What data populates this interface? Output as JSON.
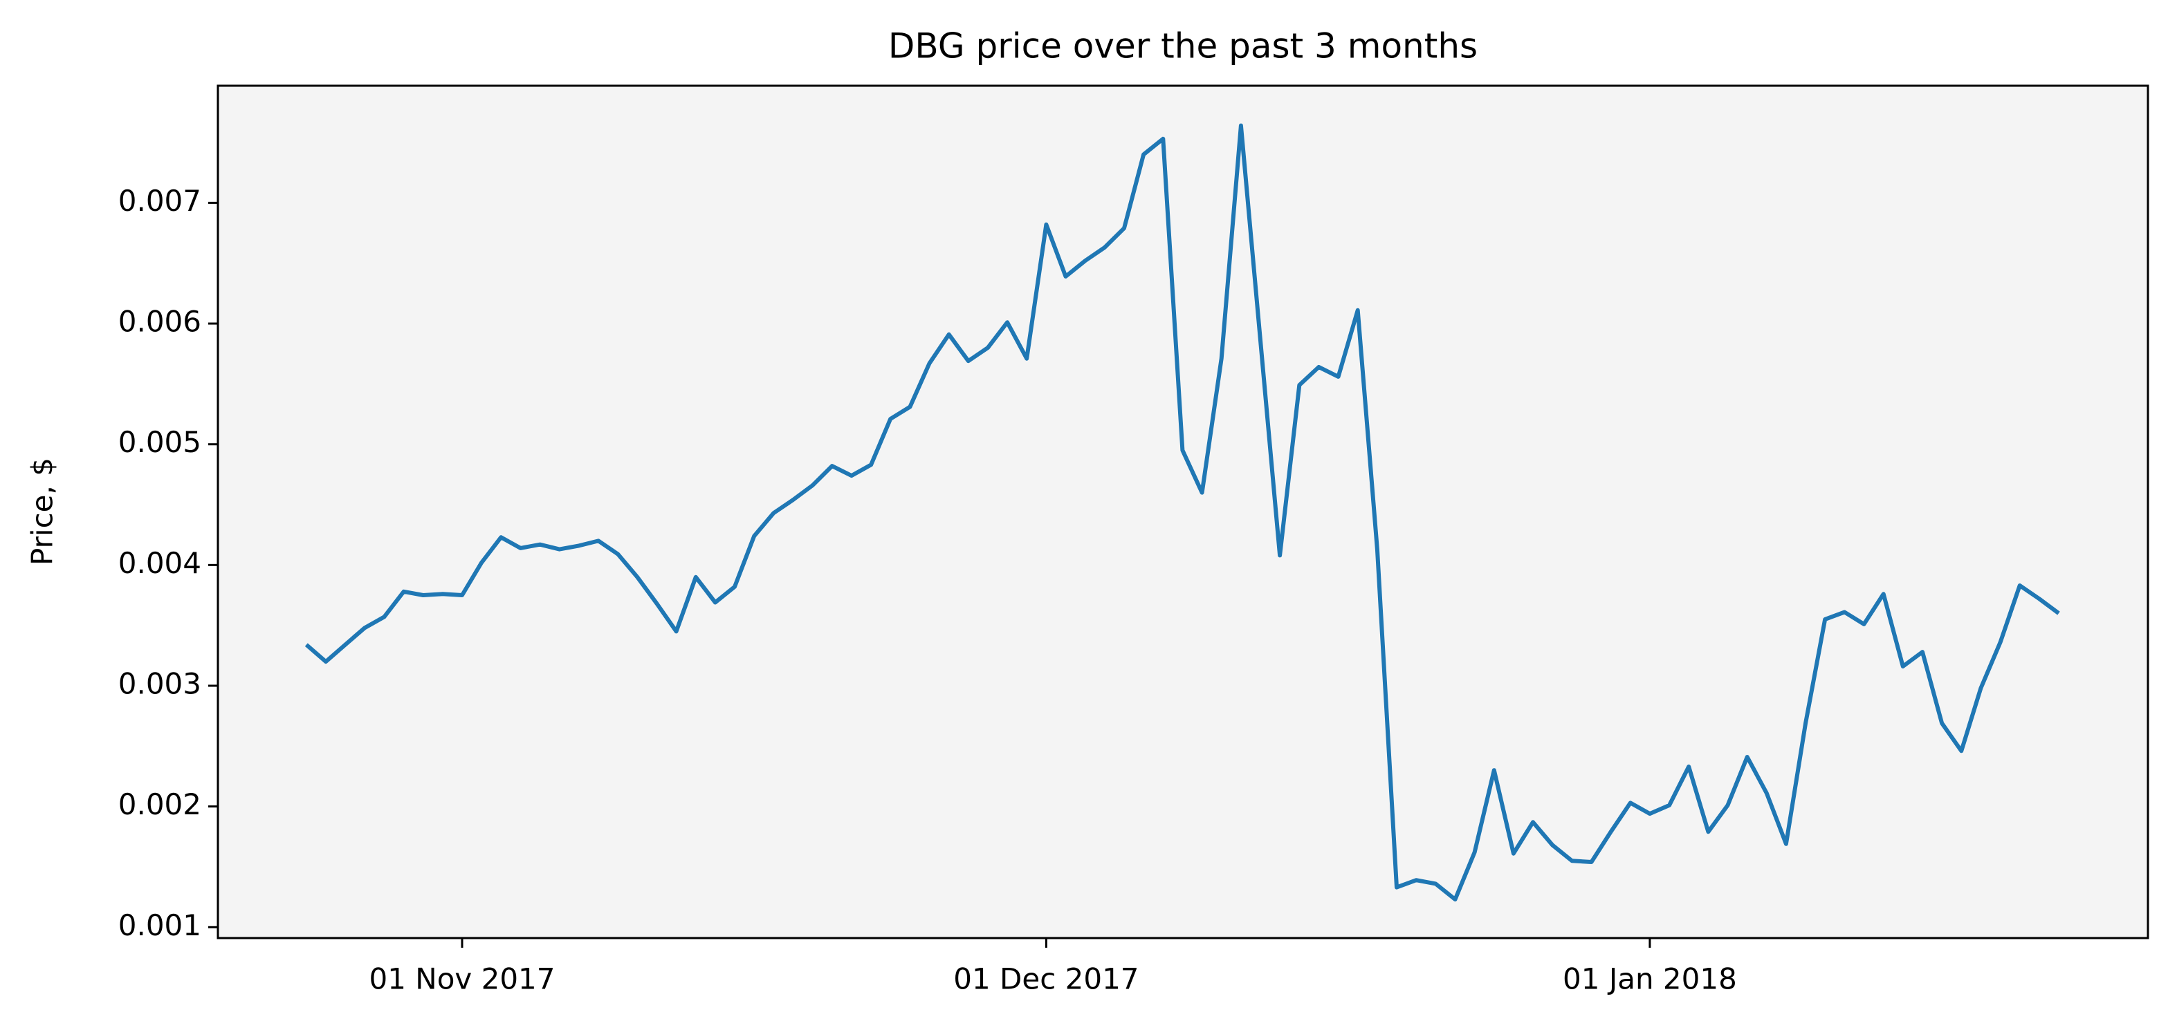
{
  "chart_data": {
    "type": "line",
    "title": "DBG price over the past 3 months",
    "ylabel": "Price, $",
    "x": [
      "2017-10-24",
      "2017-10-25",
      "2017-10-26",
      "2017-10-27",
      "2017-10-28",
      "2017-10-29",
      "2017-10-30",
      "2017-10-31",
      "2017-11-01",
      "2017-11-02",
      "2017-11-03",
      "2017-11-04",
      "2017-11-05",
      "2017-11-06",
      "2017-11-07",
      "2017-11-08",
      "2017-11-09",
      "2017-11-10",
      "2017-11-11",
      "2017-11-12",
      "2017-11-13",
      "2017-11-14",
      "2017-11-15",
      "2017-11-16",
      "2017-11-17",
      "2017-11-18",
      "2017-11-19",
      "2017-11-20",
      "2017-11-21",
      "2017-11-22",
      "2017-11-23",
      "2017-11-24",
      "2017-11-25",
      "2017-11-26",
      "2017-11-27",
      "2017-11-28",
      "2017-11-29",
      "2017-11-30",
      "2017-12-01",
      "2017-12-02",
      "2017-12-03",
      "2017-12-04",
      "2017-12-05",
      "2017-12-06",
      "2017-12-07",
      "2017-12-08",
      "2017-12-09",
      "2017-12-10",
      "2017-12-11",
      "2017-12-12",
      "2017-12-13",
      "2017-12-14",
      "2017-12-15",
      "2017-12-16",
      "2017-12-17",
      "2017-12-18",
      "2017-12-19",
      "2017-12-20",
      "2017-12-21",
      "2017-12-22",
      "2017-12-23",
      "2017-12-24",
      "2017-12-25",
      "2017-12-26",
      "2017-12-27",
      "2017-12-28",
      "2017-12-29",
      "2017-12-30",
      "2017-12-31",
      "2018-01-01",
      "2018-01-02",
      "2018-01-03",
      "2018-01-04",
      "2018-01-05",
      "2018-01-06",
      "2018-01-07",
      "2018-01-08",
      "2018-01-09",
      "2018-01-10",
      "2018-01-11",
      "2018-01-12",
      "2018-01-13",
      "2018-01-14",
      "2018-01-15",
      "2018-01-16",
      "2018-01-17",
      "2018-01-18",
      "2018-01-19",
      "2018-01-20",
      "2018-01-21",
      "2018-01-22"
    ],
    "values": [
      0.00334,
      0.0032,
      0.00334,
      0.00348,
      0.00357,
      0.00378,
      0.00375,
      0.00376,
      0.00375,
      0.00402,
      0.00423,
      0.00414,
      0.00417,
      0.00413,
      0.00416,
      0.0042,
      0.00409,
      0.0039,
      0.00368,
      0.00345,
      0.0039,
      0.00369,
      0.00382,
      0.00424,
      0.00443,
      0.00454,
      0.00466,
      0.00482,
      0.00474,
      0.00483,
      0.00521,
      0.00531,
      0.00567,
      0.00591,
      0.00569,
      0.0058,
      0.00601,
      0.00571,
      0.00682,
      0.00639,
      0.00652,
      0.00663,
      0.00679,
      0.0074,
      0.00753,
      0.00495,
      0.0046,
      0.00571,
      0.00764,
      0.00586,
      0.00408,
      0.00549,
      0.00564,
      0.00556,
      0.00611,
      0.00413,
      0.00133,
      0.00139,
      0.00136,
      0.00123,
      0.00162,
      0.0023,
      0.00161,
      0.00187,
      0.00168,
      0.00155,
      0.00154,
      0.00179,
      0.00203,
      0.00194,
      0.00201,
      0.00233,
      0.00179,
      0.00201,
      0.00241,
      0.00211,
      0.00169,
      0.00269,
      0.00355,
      0.00361,
      0.00351,
      0.00376,
      0.00316,
      0.00328,
      0.00269,
      0.00246,
      0.00298,
      0.00336,
      0.00383,
      0.00372,
      0.0036
    ],
    "color": "#1f77b4",
    "xlim": [
      "2017-10-19T11:00",
      "2018-01-26T14:00"
    ],
    "xticks": [
      {
        "value": "2017-11-01",
        "label": "01 Nov 2017"
      },
      {
        "value": "2017-12-01",
        "label": "01 Dec 2017"
      },
      {
        "value": "2018-01-01",
        "label": "01 Jan 2018"
      }
    ],
    "ylim": [
      0.00091,
      0.00797
    ],
    "yticks": [
      0.001,
      0.002,
      0.003,
      0.004,
      0.005,
      0.006,
      0.007
    ],
    "grid": false
  }
}
